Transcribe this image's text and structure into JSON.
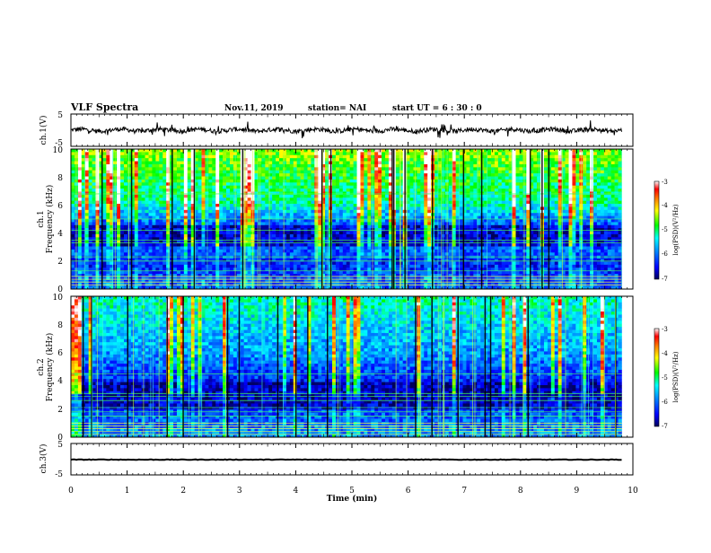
{
  "header": {
    "title": "VLF Spectra",
    "date": "Nov.11, 2019",
    "station": "station= NAI",
    "start": "start  UT =  6 : 30 : 0"
  },
  "chart_data": [
    {
      "type": "line",
      "panel": "ch1-waveform",
      "ylabel": "ch.1(V)",
      "ylim": [
        -5,
        5
      ],
      "yticks": [
        "5",
        "-5"
      ],
      "xlim": [
        0,
        10
      ],
      "x_end": 9.8,
      "level": 0,
      "grid": false
    },
    {
      "type": "heatmap",
      "panel": "ch1-spectrogram",
      "ylabel": "ch.1\nFrequency  (kHz)",
      "ylim": [
        0,
        10
      ],
      "yticks": [
        "0",
        "2",
        "4",
        "6",
        "8",
        "10"
      ],
      "xlim": [
        0,
        10
      ],
      "x_end": 9.8,
      "colorbar": {
        "label": "log(PSD)(V²/Hz)",
        "range": [
          -7,
          -3
        ],
        "ticks": [
          "-3",
          "-4",
          "-5",
          "-6",
          "-7"
        ]
      },
      "colormap": [
        "#00008b",
        "#0000ff",
        "#0096ff",
        "#00ffff",
        "#00ff00",
        "#ffff00",
        "#ff8000",
        "#ff0000",
        "#ffffff"
      ]
    },
    {
      "type": "heatmap",
      "panel": "ch2-spectrogram",
      "ylabel": "ch.2\nFrequency  (kHz)",
      "ylim": [
        0,
        10
      ],
      "yticks": [
        "0",
        "2",
        "4",
        "6",
        "8",
        "10"
      ],
      "xlim": [
        0,
        10
      ],
      "x_end": 9.8,
      "colorbar": {
        "label": "log(PSD)(V²/Hz)",
        "range": [
          -7,
          -3
        ],
        "ticks": [
          "-3",
          "-4",
          "-5",
          "-6",
          "-7"
        ]
      },
      "colormap": [
        "#00008b",
        "#0000ff",
        "#0096ff",
        "#00ffff",
        "#00ff00",
        "#ffff00",
        "#ff8000",
        "#ff0000",
        "#ffffff"
      ]
    },
    {
      "type": "line",
      "panel": "ch3-waveform",
      "ylabel": "ch.3(V)",
      "ylim": [
        -5,
        5
      ],
      "yticks": [
        "5",
        "-5"
      ],
      "xlim": [
        0,
        10
      ],
      "x_end": 9.8,
      "level": 0,
      "grid": false
    }
  ],
  "xaxis": {
    "label": "Time  (min)",
    "ticks": [
      "0",
      "1",
      "2",
      "3",
      "4",
      "5",
      "6",
      "7",
      "8",
      "9",
      "10"
    ]
  }
}
